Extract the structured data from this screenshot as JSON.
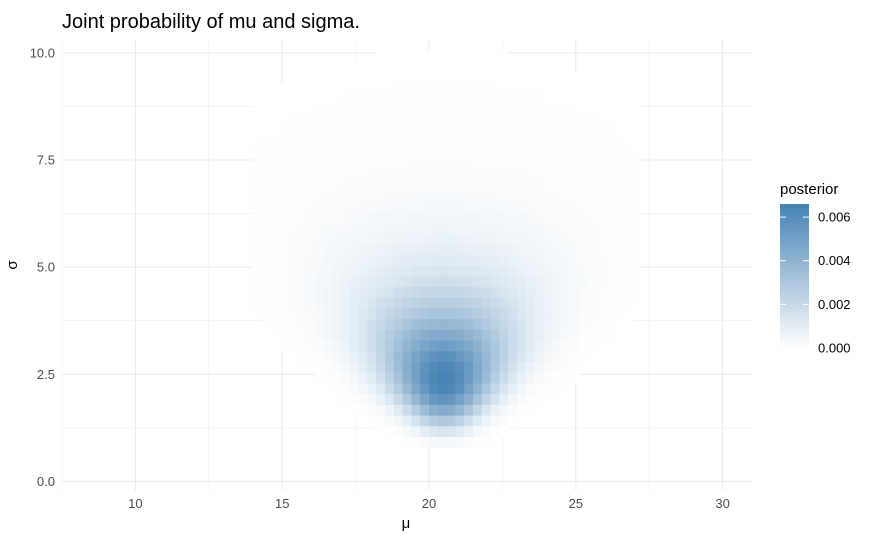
{
  "chart_data": {
    "type": "heatmap",
    "title": "Joint probability of mu and sigma.",
    "xlabel": "μ",
    "ylabel": "σ",
    "xlim": [
      7.5,
      31
    ],
    "ylim": [
      -0.2,
      10.3
    ],
    "x_ticks": [
      10,
      15,
      20,
      25,
      30
    ],
    "x_tick_labels": [
      "10",
      "15",
      "20",
      "25",
      "30"
    ],
    "y_ticks": [
      0,
      2.5,
      5,
      7.5,
      10
    ],
    "y_tick_labels": [
      "0.0",
      "2.5",
      "5.0",
      "7.5",
      "10.0"
    ],
    "grid": true,
    "legend": {
      "title": "posterior",
      "placement": "right",
      "values": [
        0.0,
        0.002,
        0.004,
        0.006
      ],
      "labels": [
        "0.000",
        "0.002",
        "0.004",
        "0.006"
      ],
      "max": 0.0066
    },
    "color_low": "#ffffff",
    "color_high": "#4682b4",
    "grid_color": "#ebebeb",
    "density_peak": {
      "mu": 20.5,
      "sigma": 2.4,
      "max_posterior": 0.0066
    },
    "grid_x_range": [
      14,
      27
    ],
    "grid_y_range": [
      0.8,
      10.3
    ]
  }
}
